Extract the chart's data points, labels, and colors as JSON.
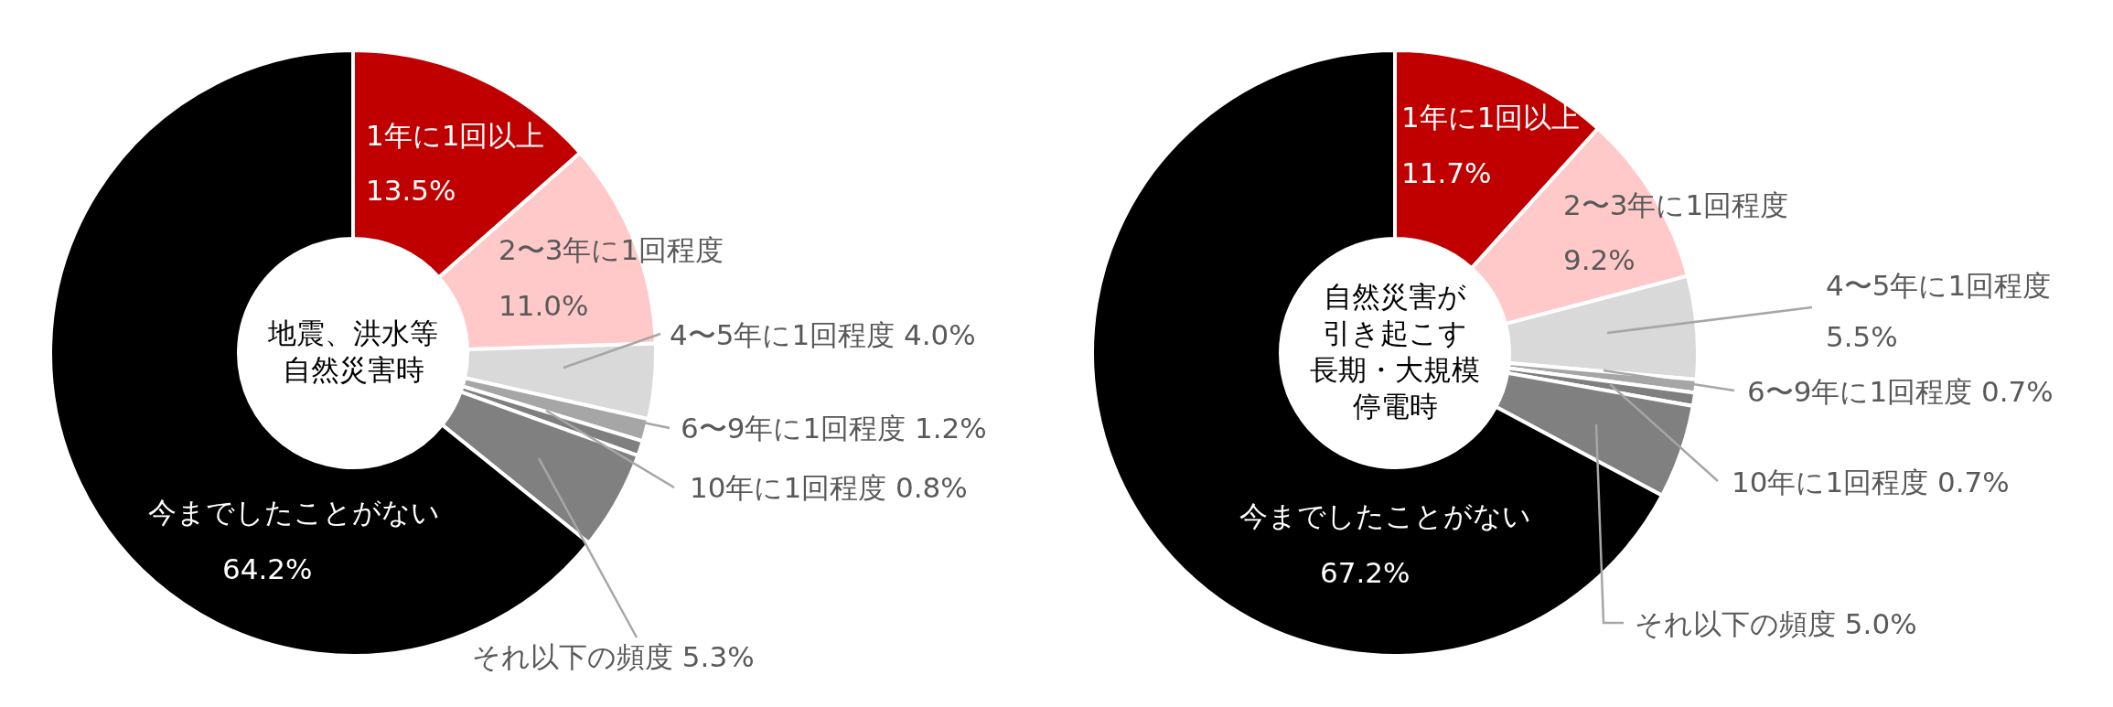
{
  "chart_data": [
    {
      "type": "donut",
      "title": "地震、洪水等自然災害時",
      "categories": [
        "1年に1回以上",
        "2〜3年に1回程度",
        "4〜5年に1回程度",
        "6〜9年に1回程度",
        "10年に1回程度",
        "それ以下の頻度",
        "今までしたことがない"
      ],
      "values": [
        13.5,
        11.0,
        4.0,
        1.2,
        0.8,
        5.3,
        64.2
      ],
      "value_labels": [
        "13.5%",
        "11.0%",
        "4.0%",
        "1.2%",
        "0.8%",
        "5.3%",
        "64.2%"
      ],
      "colors": [
        "#c00000",
        "#ffc9c9",
        "#d9d9d9",
        "#a6a6a6",
        "#7f7f7f",
        "#808080",
        "#000000"
      ]
    },
    {
      "type": "donut",
      "title": "自然災害が引き起こす長期・大規模停電時",
      "categories": [
        "1年に1回以上",
        "2〜3年に1回程度",
        "4〜5年に1回程度",
        "6〜9年に1回程度",
        "10年に1回程度",
        "それ以下の頻度",
        "今までしたことがない"
      ],
      "values": [
        11.7,
        9.2,
        5.5,
        0.7,
        0.7,
        5.0,
        67.2
      ],
      "value_labels": [
        "11.7%",
        "9.2%",
        "5.5%",
        "0.7%",
        "0.7%",
        "5.0%",
        "67.2%"
      ],
      "colors": [
        "#c00000",
        "#ffc9c9",
        "#d9d9d9",
        "#a6a6a6",
        "#7f7f7f",
        "#808080",
        "#000000"
      ]
    }
  ]
}
